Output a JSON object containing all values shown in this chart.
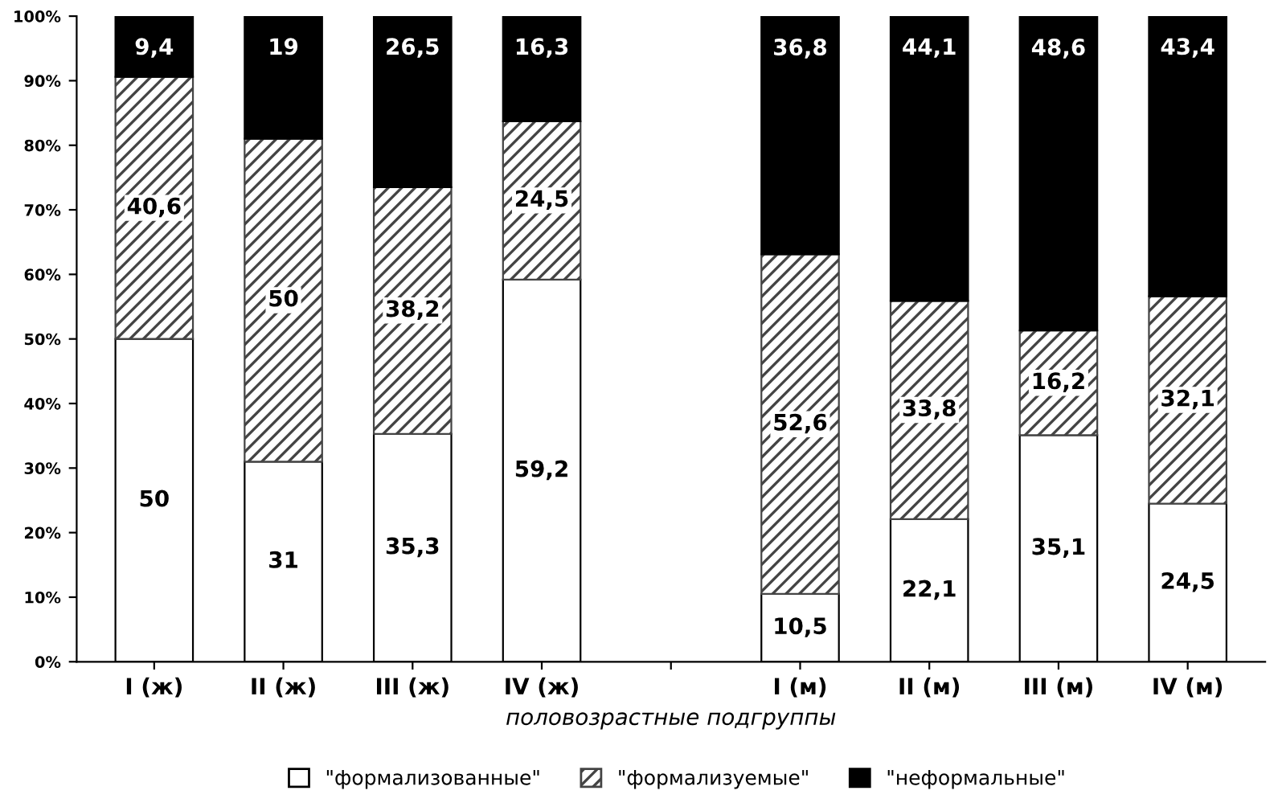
{
  "chart_data": {
    "type": "bar",
    "stacked": true,
    "xlabel": "половозрастные подгруппы",
    "categories": [
      "I (ж)",
      "II (ж)",
      "III (ж)",
      "IV (ж)",
      null,
      "I (м)",
      "II (м)",
      "III (м)",
      "IV (м)"
    ],
    "series": [
      {
        "name": "\"формализованные\"",
        "color": "#ffffff",
        "values": [
          50,
          31,
          35.3,
          59.2,
          null,
          10.5,
          22.1,
          35.1,
          24.5
        ],
        "value_labels": [
          "50",
          "31",
          "35,3",
          "59,2",
          null,
          "10,5",
          "22,1",
          "35,1",
          "24,5"
        ]
      },
      {
        "name": "\"формализуемые\"",
        "color": "#444444",
        "values": [
          40.6,
          50,
          38.2,
          24.5,
          null,
          52.6,
          33.8,
          16.2,
          32.1
        ],
        "value_labels": [
          "40,6",
          "50",
          "38,2",
          "24,5",
          null,
          "52,6",
          "33,8",
          "16,2",
          "32,1"
        ]
      },
      {
        "name": "\"неформальные\"",
        "color": "#000000",
        "values": [
          9.4,
          19,
          26.5,
          16.3,
          null,
          36.8,
          44.1,
          48.6,
          43.4
        ],
        "value_labels": [
          "9,4",
          "19",
          "26,5",
          "16,3",
          null,
          "36,8",
          "44,1",
          "48,6",
          "43,4"
        ]
      }
    ],
    "ylim": [
      0,
      100
    ],
    "yticks": [
      {
        "value": 0,
        "label": "0%"
      },
      {
        "value": 10,
        "label": "10%"
      },
      {
        "value": 20,
        "label": "20%"
      },
      {
        "value": 30,
        "label": "30%"
      },
      {
        "value": 40,
        "label": "40%"
      },
      {
        "value": 50,
        "label": "50%"
      },
      {
        "value": 60,
        "label": "60%"
      },
      {
        "value": 70,
        "label": "70%"
      },
      {
        "value": 80,
        "label": "80%"
      },
      {
        "value": 90,
        "label": "90%"
      },
      {
        "value": 100,
        "label": "100%"
      }
    ],
    "grid": false,
    "legend": "bottom"
  }
}
